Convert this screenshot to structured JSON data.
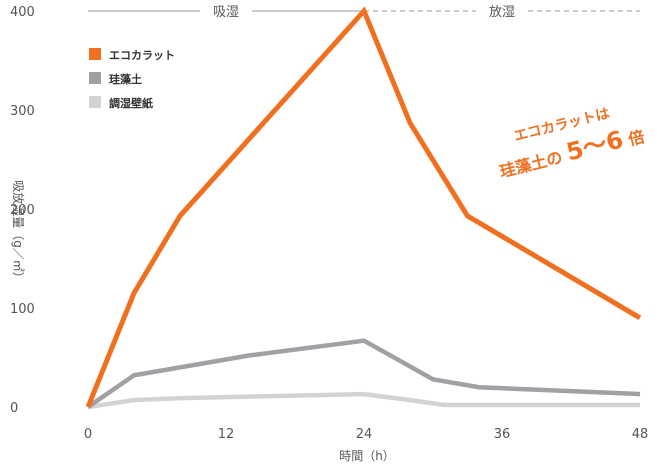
{
  "chart_data": {
    "type": "line",
    "xlabel": "時間（h）",
    "ylabel": "吸放湿量（g／㎡）",
    "xlim": [
      0,
      48
    ],
    "ylim": [
      0,
      400
    ],
    "x_ticks": [
      "0",
      "12",
      "24",
      "36",
      "48"
    ],
    "y_ticks": [
      "0",
      "100",
      "200",
      "300",
      "400"
    ],
    "phases": [
      {
        "label": "吸湿",
        "range": [
          0,
          24
        ],
        "style": "solid"
      },
      {
        "label": "放湿",
        "range": [
          24,
          48
        ],
        "style": "dashed"
      }
    ],
    "series": [
      {
        "name": "エコカラット",
        "color": "#f07020",
        "points": [
          [
            0,
            0
          ],
          [
            4,
            115
          ],
          [
            8,
            193
          ],
          [
            24,
            400
          ],
          [
            28,
            287
          ],
          [
            33,
            193
          ],
          [
            48,
            90
          ]
        ]
      },
      {
        "name": "珪藻土",
        "color": "#a0a0a5",
        "points": [
          [
            0,
            0
          ],
          [
            4,
            32
          ],
          [
            8,
            40
          ],
          [
            14,
            52
          ],
          [
            24,
            67
          ],
          [
            30,
            28
          ],
          [
            34,
            20
          ],
          [
            48,
            13
          ]
        ]
      },
      {
        "name": "調湿壁紙",
        "color": "#d3d3d3",
        "points": [
          [
            0,
            0
          ],
          [
            4,
            7
          ],
          [
            8,
            9
          ],
          [
            24,
            13
          ],
          [
            28,
            7
          ],
          [
            31,
            2
          ],
          [
            48,
            2
          ]
        ]
      }
    ],
    "legend_position": "top-left",
    "grid": false,
    "annotation": {
      "line1": "エコカラットは",
      "line2_prefix": "珪藻土の",
      "line2_emph": "5〜6",
      "line2_suffix": "倍"
    }
  }
}
